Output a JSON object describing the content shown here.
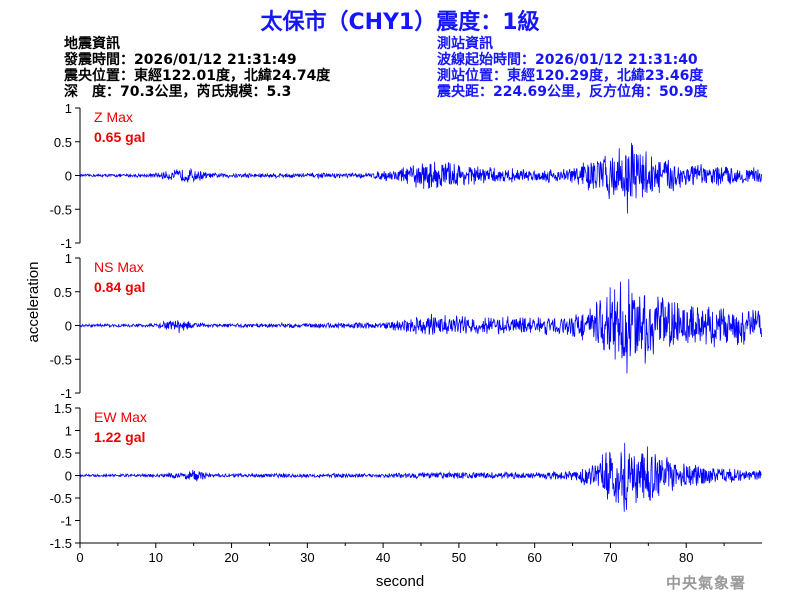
{
  "header": {
    "title": "太保市（CHY1）震度：1級"
  },
  "quake_info": {
    "heading": "地震資訊",
    "time": "發震時間：2026/01/12 21:31:49",
    "location": "震央位置：東經122.01度，北緯24.74度",
    "depth_mag": "深　度：70.3公里，芮氏規模：5.3"
  },
  "station_info": {
    "heading": "測站資訊",
    "wave_start": "波線起始時間：2026/01/12 21:31:40",
    "location": "測站位置：東經120.29度，北緯23.46度",
    "distance": "震央距：224.69公里，反方位角：50.9度"
  },
  "chart_data": {
    "type": "line",
    "xlabel": "second",
    "ylabel": "acceleration",
    "xlim": [
      0,
      90
    ],
    "x_ticks": [
      0,
      10,
      20,
      30,
      40,
      50,
      60,
      70,
      80
    ],
    "color": "#0000ff",
    "panels": [
      {
        "name": "Z",
        "max_label": "Z Max",
        "max_value": "0.65 gal",
        "ylim": [
          -1,
          1
        ],
        "y_ticks": [
          1,
          0.5,
          0,
          -0.5,
          -1
        ],
        "envelope": [
          [
            0,
            0.02
          ],
          [
            9,
            0.03
          ],
          [
            11,
            0.06
          ],
          [
            14,
            0.12
          ],
          [
            15.5,
            0.1
          ],
          [
            17,
            0.04
          ],
          [
            38,
            0.04
          ],
          [
            42,
            0.12
          ],
          [
            45,
            0.22
          ],
          [
            48,
            0.25
          ],
          [
            51,
            0.18
          ],
          [
            55,
            0.12
          ],
          [
            60,
            0.1
          ],
          [
            64,
            0.12
          ],
          [
            68,
            0.3
          ],
          [
            71,
            0.45
          ],
          [
            72.5,
            0.6
          ],
          [
            74,
            0.45
          ],
          [
            77,
            0.3
          ],
          [
            82,
            0.18
          ],
          [
            90,
            0.12
          ]
        ]
      },
      {
        "name": "NS",
        "max_label": "NS Max",
        "max_value": "0.84 gal",
        "ylim": [
          -1,
          1
        ],
        "y_ticks": [
          1,
          0.5,
          0,
          -0.5,
          -1
        ],
        "envelope": [
          [
            0,
            0.02
          ],
          [
            10,
            0.03
          ],
          [
            11.5,
            0.08
          ],
          [
            13,
            0.12
          ],
          [
            15,
            0.06
          ],
          [
            17,
            0.03
          ],
          [
            40,
            0.05
          ],
          [
            43,
            0.12
          ],
          [
            46,
            0.18
          ],
          [
            50,
            0.16
          ],
          [
            55,
            0.14
          ],
          [
            60,
            0.14
          ],
          [
            65,
            0.18
          ],
          [
            68,
            0.35
          ],
          [
            70,
            0.6
          ],
          [
            72,
            0.75
          ],
          [
            74,
            0.6
          ],
          [
            77,
            0.45
          ],
          [
            82,
            0.35
          ],
          [
            90,
            0.28
          ]
        ]
      },
      {
        "name": "EW",
        "max_label": "EW Max",
        "max_value": "1.22 gal",
        "ylim": [
          -1.5,
          1.5
        ],
        "y_ticks": [
          1.5,
          1,
          0.5,
          0,
          -0.5,
          -1,
          -1.5
        ],
        "envelope": [
          [
            0,
            0.03
          ],
          [
            10,
            0.04
          ],
          [
            14,
            0.1
          ],
          [
            15.5,
            0.16
          ],
          [
            17,
            0.05
          ],
          [
            40,
            0.05
          ],
          [
            44,
            0.08
          ],
          [
            50,
            0.08
          ],
          [
            60,
            0.08
          ],
          [
            65,
            0.12
          ],
          [
            68,
            0.35
          ],
          [
            70,
            0.65
          ],
          [
            72,
            0.95
          ],
          [
            73.5,
            0.85
          ],
          [
            76,
            0.55
          ],
          [
            80,
            0.3
          ],
          [
            85,
            0.18
          ],
          [
            90,
            0.14
          ]
        ]
      }
    ]
  },
  "footer": {
    "agency": "中央氣象署"
  }
}
